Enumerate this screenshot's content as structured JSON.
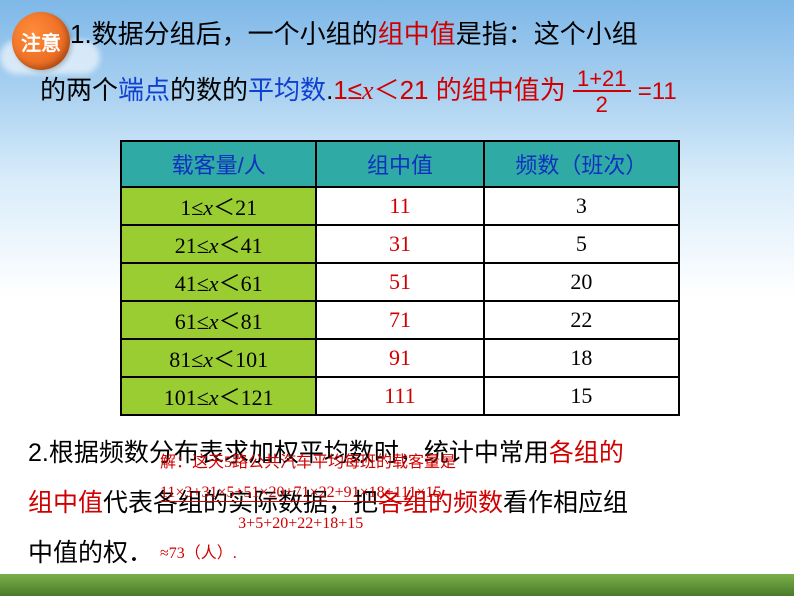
{
  "badge": {
    "text": "注意",
    "bg": "#e05a15",
    "fontsize": 20
  },
  "para1": {
    "prefix": "1.数据分组后，一个小组的",
    "highlight1": "组中值",
    "mid1": "是指：这个小组",
    "line2a": "的两个",
    "blue1": "端点",
    "line2b": "的数的",
    "blue2": "平均数",
    "period": ".",
    "example": "1≤x＜21 的组中值为",
    "frac_num": "1+21",
    "frac_den": "2",
    "equals": "=11"
  },
  "table": {
    "headers": [
      "载客量/人",
      "组中值",
      "频数（班次）"
    ],
    "rows": [
      {
        "range_lo": 1,
        "range_hi": 21,
        "mid": "11",
        "freq": "3"
      },
      {
        "range_lo": 21,
        "range_hi": 41,
        "mid": "31",
        "freq": "5"
      },
      {
        "range_lo": 41,
        "range_hi": 61,
        "mid": "51",
        "freq": "20"
      },
      {
        "range_lo": 61,
        "range_hi": 81,
        "mid": "71",
        "freq": "22"
      },
      {
        "range_lo": 81,
        "range_hi": 101,
        "mid": "91",
        "freq": "18"
      },
      {
        "range_lo": 101,
        "range_hi": 121,
        "mid": "111",
        "freq": "15"
      }
    ],
    "header_bg": "#2faaa5",
    "header_color": "#1030c0",
    "range_bg": "#9acd32",
    "mid_color": "#d00000"
  },
  "para2": {
    "l1a": "2.根据频数分布表求加权平均数时，统计中常用",
    "l1b": "各组的",
    "l2a": "组中值",
    "l2b": "代表各组的实际数据，把",
    "l2c": "各组的频数",
    "l2d": "看作相应组",
    "l3": "中值的权．"
  },
  "solution": {
    "s1": "解：这天5路公共汽车平均每班的载客量是",
    "s2": "11×3+31×5+51×20+71×22+91×18+111×15",
    "s2b": "3+5+20+22+18+15",
    "s3": "≈73（人）."
  },
  "colors": {
    "red": "#d00000",
    "blue": "#1040d0",
    "sky_top": "#7fb8e8",
    "grass": "#4a7a2a"
  }
}
